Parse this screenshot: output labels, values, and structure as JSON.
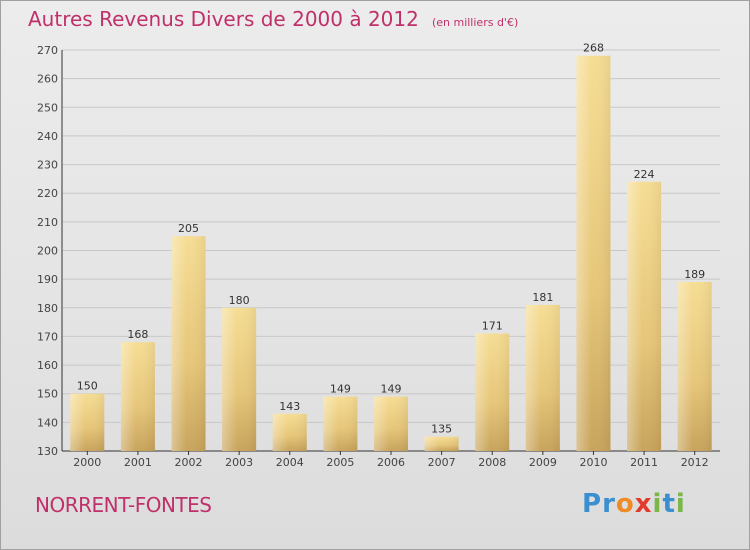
{
  "title": {
    "main": "Autres Revenus Divers de 2000 à 2012",
    "unit": "(en milliers d'€)"
  },
  "commune": "NORRENT-FONTES",
  "brand": {
    "text": "Proxiti",
    "letters": [
      {
        "ch": "P",
        "color": "#3a8fd0"
      },
      {
        "ch": "r",
        "color": "#3a8fd0"
      },
      {
        "ch": "o",
        "color": "#f08a24"
      },
      {
        "ch": "x",
        "color": "#e23a2c"
      },
      {
        "ch": "i",
        "color": "#7ab648"
      },
      {
        "ch": "t",
        "color": "#3a8fd0"
      },
      {
        "ch": "i",
        "color": "#7ab648"
      }
    ]
  },
  "chart_data": {
    "type": "bar",
    "categories": [
      "2000",
      "2001",
      "2002",
      "2003",
      "2004",
      "2005",
      "2006",
      "2007",
      "2008",
      "2009",
      "2010",
      "2011",
      "2012"
    ],
    "values": [
      150,
      168,
      205,
      180,
      143,
      149,
      149,
      135,
      171,
      181,
      268,
      224,
      189
    ],
    "ylim": [
      130,
      270
    ],
    "yticks": [
      130,
      140,
      150,
      160,
      170,
      180,
      190,
      200,
      210,
      220,
      230,
      240,
      250,
      260,
      270
    ],
    "grid": true,
    "bar_color": "#e8c97a",
    "title_color": "#c0306a"
  }
}
